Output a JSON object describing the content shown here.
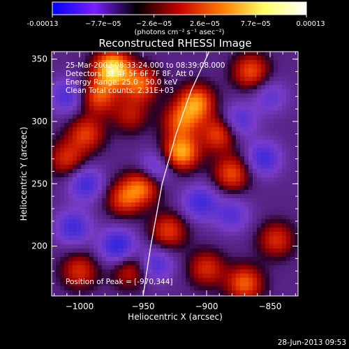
{
  "colorbar": {
    "ticks": [
      "-0.00013",
      "−7.7e−05",
      "−2.6e−05",
      "2.6e−05",
      "7.7e−05",
      "0.00013"
    ],
    "units": "(photons cm⁻² s⁻¹ asec⁻²)",
    "colors": [
      "#0000ff",
      "#7a1fff",
      "#000000",
      "#c80000",
      "#ff7a00",
      "#ffff66",
      "#ffffff"
    ]
  },
  "chart_data": {
    "type": "heatmap",
    "title": "Reconstructed RHESSI Image",
    "xlabel": "Heliocentric X (arcsec)",
    "ylabel": "Heliocentric Y (arcsec)",
    "xlim": [
      -1022,
      -828
    ],
    "ylim": [
      160,
      356
    ],
    "x_ticks": [
      {
        "value": -1000,
        "label": "−1000"
      },
      {
        "value": -950,
        "label": "−950"
      },
      {
        "value": -900,
        "label": "−900"
      },
      {
        "value": -850,
        "label": "−850"
      }
    ],
    "y_ticks": [
      {
        "value": 200,
        "label": "200"
      },
      {
        "value": 250,
        "label": "250"
      },
      {
        "value": 300,
        "label": "300"
      },
      {
        "value": 350,
        "label": "350"
      }
    ],
    "info_lines": [
      "25-Mar-2002 08:33:24.000 to 08:39:08.000",
      "Detectors: 3F 4F 5F 6F 7F 8F, Att 0",
      "Energy Range: 25.0 - 50.0 keV",
      "Clean    Total counts: 2.31E+03"
    ],
    "peak_label": "Position of Peak = [-970,344]",
    "limb_points": [
      [
        -950,
        160
      ],
      [
        -944,
        200
      ],
      [
        -935,
        250
      ],
      [
        -924,
        290
      ],
      [
        -912,
        325
      ],
      [
        -898,
        356
      ]
    ],
    "sources": [
      {
        "x": -974,
        "y": 342,
        "v": 1.0
      },
      {
        "x": -985,
        "y": 320,
        "v": 0.55
      },
      {
        "x": -952,
        "y": 330,
        "v": 0.6
      },
      {
        "x": -960,
        "y": 305,
        "v": 0.35
      },
      {
        "x": -920,
        "y": 300,
        "v": 0.55
      },
      {
        "x": -908,
        "y": 315,
        "v": 0.7
      },
      {
        "x": -890,
        "y": 290,
        "v": 0.55
      },
      {
        "x": -920,
        "y": 275,
        "v": 0.8
      },
      {
        "x": -950,
        "y": 248,
        "v": 0.6
      },
      {
        "x": -965,
        "y": 238,
        "v": 0.5
      },
      {
        "x": -880,
        "y": 258,
        "v": 0.55
      },
      {
        "x": -865,
        "y": 340,
        "v": 0.55
      },
      {
        "x": -995,
        "y": 290,
        "v": 0.5
      },
      {
        "x": -1010,
        "y": 270,
        "v": 0.45
      },
      {
        "x": -930,
        "y": 212,
        "v": 0.5
      },
      {
        "x": -900,
        "y": 182,
        "v": 0.45
      },
      {
        "x": -870,
        "y": 170,
        "v": 0.6
      },
      {
        "x": -845,
        "y": 205,
        "v": 0.45
      },
      {
        "x": -960,
        "y": 180,
        "v": 0.4
      },
      {
        "x": -1000,
        "y": 180,
        "v": 0.45
      },
      {
        "x": -970,
        "y": 200,
        "v": -0.55
      },
      {
        "x": -995,
        "y": 250,
        "v": -0.45
      },
      {
        "x": -940,
        "y": 262,
        "v": -0.4
      },
      {
        "x": -875,
        "y": 300,
        "v": -0.4
      },
      {
        "x": -855,
        "y": 270,
        "v": -0.45
      },
      {
        "x": -905,
        "y": 235,
        "v": -0.45
      },
      {
        "x": -880,
        "y": 225,
        "v": -0.35
      },
      {
        "x": -1010,
        "y": 320,
        "v": -0.4
      },
      {
        "x": -1005,
        "y": 215,
        "v": -0.45
      },
      {
        "x": -940,
        "y": 185,
        "v": -0.4
      },
      {
        "x": -850,
        "y": 320,
        "v": -0.3
      }
    ]
  },
  "timestamp": "28-Jun-2013 09:53"
}
